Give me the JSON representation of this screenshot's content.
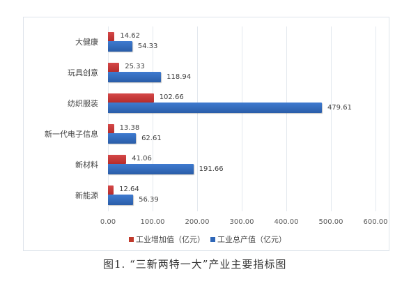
{
  "chart_data": {
    "type": "bar",
    "orientation": "horizontal",
    "title": "",
    "caption": "图1. “三新两特一大”产业主要指标图",
    "xlabel": "",
    "ylabel": "",
    "xlim": [
      0,
      600
    ],
    "xticks": [
      "0.00",
      "100.00",
      "200.00",
      "300.00",
      "400.00",
      "500.00",
      "600.00"
    ],
    "grid": true,
    "legend_position": "bottom",
    "categories": [
      "大健康",
      "玩具创意",
      "纺织服装",
      "新一代电子信息",
      "新材料",
      "新能源"
    ],
    "series": [
      {
        "name": "工业增加值（亿元）",
        "color": "#c0392b",
        "values": [
          14.62,
          25.33,
          102.66,
          13.38,
          41.06,
          12.64
        ],
        "labels": [
          "14.62",
          "25.33",
          "102.66",
          "13.38",
          "41.06",
          "12.64"
        ]
      },
      {
        "name": "工业总产值（亿元）",
        "color": "#2f67b8",
        "values": [
          54.33,
          118.94,
          479.61,
          62.61,
          191.66,
          56.39
        ],
        "labels": [
          "54.33",
          "118.94",
          "479.61",
          "62.61",
          "191.66",
          "56.39"
        ]
      }
    ]
  }
}
